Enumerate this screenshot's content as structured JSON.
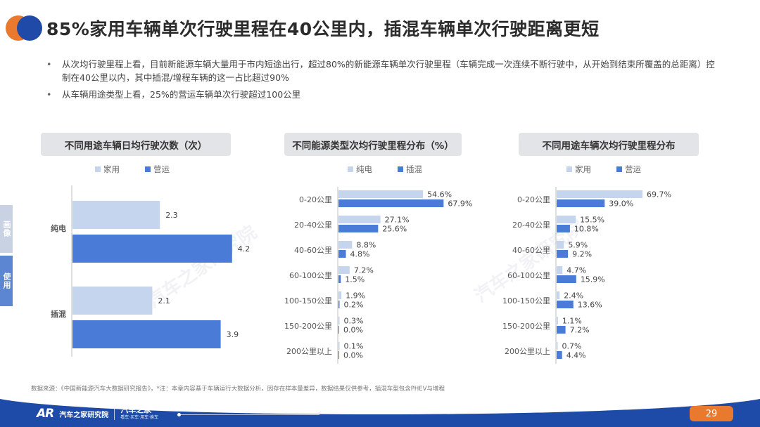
{
  "header": {
    "title": "85%家用车辆单次行驶里程在40公里内，插混车辆单次行驶距离更短"
  },
  "bullets": [
    "从次均行驶里程上看，目前新能源车辆大量用于市内短途出行，超过80%的新能源车辆单次行驶里程（车辆完成一次连续不断行驶中，从开始到结束所覆盖的总距离）控制在40公里以内，其中插混/增程车辆的这一占比超过90%",
    "从车辆用途类型上看，25%的营运车辆单次行驶超过100公里"
  ],
  "side_tabs": [
    "画像",
    "使用"
  ],
  "watermark": "汽车之家研究院",
  "colors": {
    "light": "#c5d5ee",
    "dark": "#4a7bd6",
    "title_bg": "#e3e4e8",
    "footer": "#1e4ba8",
    "accent": "#e8792d"
  },
  "chart_data": [
    {
      "type": "bar",
      "orientation": "horizontal",
      "title": "不同用途车辆日均行驶次数（次）",
      "categories": [
        "纯电",
        "插混"
      ],
      "series": [
        {
          "name": "家用",
          "values": [
            2.3,
            2.1
          ]
        },
        {
          "name": "营运",
          "values": [
            4.2,
            3.9
          ]
        }
      ],
      "xlim": [
        0,
        5
      ],
      "value_labels": {
        "家用": [
          "2.3",
          "2.1"
        ],
        "营运": [
          "4.2",
          "3.9"
        ]
      }
    },
    {
      "type": "bar",
      "orientation": "horizontal",
      "title": "不同能源类型次均行驶里程分布（%）",
      "categories": [
        "0-20公里",
        "20-40公里",
        "40-60公里",
        "60-100公里",
        "100-150公里",
        "150-200公里",
        "200公里以上"
      ],
      "series": [
        {
          "name": "纯电",
          "values": [
            54.6,
            27.1,
            8.8,
            7.2,
            1.9,
            0.3,
            0.1
          ]
        },
        {
          "name": "插混",
          "values": [
            67.9,
            25.6,
            4.8,
            1.5,
            0.2,
            0.0,
            0.0
          ]
        }
      ],
      "xlim": [
        0,
        100
      ],
      "value_labels": {
        "纯电": [
          "54.6%",
          "27.1%",
          "8.8%",
          "7.2%",
          "1.9%",
          "0.3%",
          "0.1%"
        ],
        "插混": [
          "67.9%",
          "25.6%",
          "4.8%",
          "1.5%",
          "0.2%",
          "0.0%",
          "0.0%"
        ]
      }
    },
    {
      "type": "bar",
      "orientation": "horizontal",
      "title": "不同用途车辆次均行驶里程分布",
      "categories": [
        "0-20公里",
        "20-40公里",
        "40-60公里",
        "60-100公里",
        "100-150公里",
        "150-200公里",
        "200公里以上"
      ],
      "series": [
        {
          "name": "家用",
          "values": [
            69.7,
            15.5,
            5.9,
            4.7,
            2.4,
            1.1,
            0.7
          ]
        },
        {
          "name": "营运",
          "values": [
            39.0,
            10.8,
            9.2,
            15.9,
            13.6,
            7.2,
            4.4
          ]
        }
      ],
      "xlim": [
        0,
        100
      ],
      "value_labels": {
        "家用": [
          "69.7%",
          "15.5%",
          "5.9%",
          "4.7%",
          "2.4%",
          "1.1%",
          "0.7%"
        ],
        "营运": [
          "39.0%",
          "10.8%",
          "9.2%",
          "15.9%",
          "13.6%",
          "7.2%",
          "4.4%"
        ]
      }
    }
  ],
  "source": "数据来源：《中国新能源汽车大数据研究报告》，*注：本章内容基于车辆运行大数据分析，因存在样本量差异，数据结果仅供参考，插混车型包含PHEV与增程",
  "footer": {
    "mark": "AR",
    "name": "汽车之家研究院",
    "brand_main": "汽车之家",
    "brand_sub": "看车·买车·用车·换车",
    "page_number": "29"
  }
}
